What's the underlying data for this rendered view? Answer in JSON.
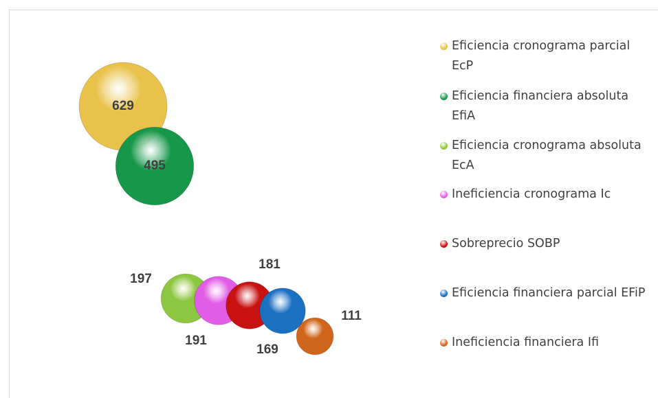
{
  "chart_data": {
    "type": "bubble",
    "series": [
      {
        "name": "Eficiencia cronograma parcial EcP",
        "color": "#e8c24a",
        "values": [
          629
        ]
      },
      {
        "name": "Eficiencia financiera absoluta EfiA",
        "color": "#17974a",
        "values": [
          495
        ]
      },
      {
        "name": "Eficiencia cronograma absoluta EcA",
        "color": "#8dc640",
        "values": [
          197
        ]
      },
      {
        "name": "Ineficiencia cronograma Ic",
        "color": "#e25de6",
        "values": [
          191
        ]
      },
      {
        "name": "Sobreprecio SOBP",
        "color": "#c81212",
        "values": [
          181
        ]
      },
      {
        "name": "Eficiencia financiera parcial EFiP",
        "color": "#1b70c2",
        "values": [
          169
        ]
      },
      {
        "name": "Ineficiencia financiera Ifi",
        "color": "#d0661c",
        "values": [
          111
        ]
      }
    ]
  }
}
